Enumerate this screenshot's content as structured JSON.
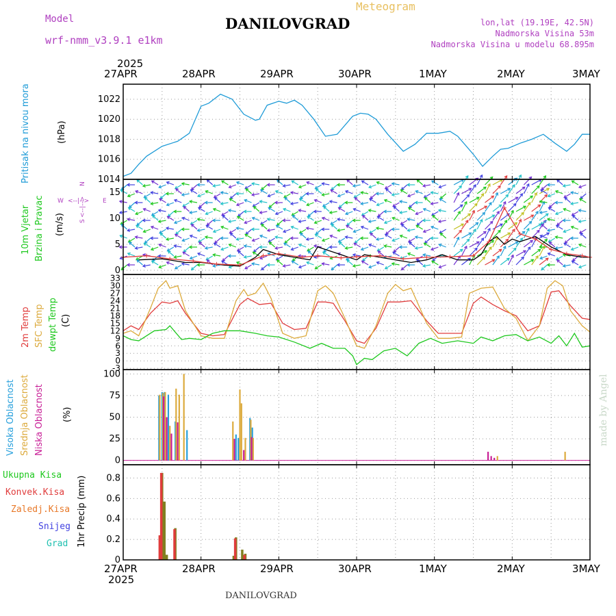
{
  "header": {
    "model_label": "Model",
    "model_name": "wrf-nmm_v3.9.1 e1km",
    "title": "DANILOVGRAD",
    "meteogram": "Meteogram",
    "lonlat": "lon,lat (19.19E, 42.5N)",
    "elevation": "Nadmorska Visina 53m",
    "model_elevation": "Nadmorska Visina u modelu 68.895m",
    "footer_title": "DANILOVGRAD",
    "credit": "made by Angel"
  },
  "time_axis": {
    "year": "2025",
    "labels": [
      "27APR",
      "28APR",
      "29APR",
      "30APR",
      "1MAY",
      "2MAY",
      "3MAY"
    ]
  },
  "panel_labels": {
    "pressure": [
      "Pritisak na nivou mora",
      "(hPa)"
    ],
    "wind": [
      "10m Vjetar",
      "Brzina i Pravac",
      "(m/s)"
    ],
    "compass": [
      "W",
      "<--|-->",
      "E",
      "N",
      "<--|-->",
      "S"
    ],
    "temp": [
      "2m Temp",
      "SFC Temp",
      "dewpt Temp",
      "(C)"
    ],
    "cloud": [
      "Visoka Oblacnost",
      "Srednja Oblacnost",
      "Niska Oblacnost",
      "(%)"
    ],
    "precip": [
      "Ukupna Kisa",
      "Konvek.Kisa",
      "Zaledj.Kisa",
      "Snijeg",
      "Grad",
      "1hr Precip (mm)"
    ]
  },
  "colors": {
    "pressure": "#1e9bd7",
    "temp2m": "#e03c3c",
    "sfc": "#dcaa3c",
    "dewpt": "#1ec81e",
    "high_cloud": "#28a0dc",
    "mid_cloud": "#dcaa3c",
    "low_cloud": "#c81e96",
    "total_rain": "#808020",
    "conv_rain": "#e03c3c",
    "wind_speed": "#000000",
    "gust": "#e03c3c",
    "purple": "#b040c0",
    "green_label": "#1ec81e",
    "red_label": "#e03c3c",
    "orange_label": "#e87828",
    "blue_label": "#4040e0",
    "teal_label": "#20c0b0"
  },
  "chart_data": [
    {
      "type": "line",
      "title": "Pritisak na nivou mora",
      "ylabel": "(hPa)",
      "x_unit": "days since 27APR 00UTC",
      "ylim": [
        1014,
        1023.5
      ],
      "yticks": [
        1014,
        1016,
        1018,
        1020,
        1022
      ],
      "series": [
        {
          "name": "Pritisak na nivou mora",
          "x": [
            0,
            0.1,
            0.2,
            0.3,
            0.5,
            0.7,
            0.85,
            1.0,
            1.1,
            1.25,
            1.4,
            1.55,
            1.7,
            1.75,
            1.85,
            2.0,
            2.1,
            2.2,
            2.3,
            2.45,
            2.6,
            2.75,
            2.95,
            3.05,
            3.15,
            3.25,
            3.4,
            3.6,
            3.75,
            3.9,
            4.05,
            4.2,
            4.3,
            4.5,
            4.62,
            4.75,
            4.85,
            4.95,
            5.1,
            5.25,
            5.4,
            5.55,
            5.7,
            5.8,
            5.9,
            6.0
          ],
          "values": [
            1014.3,
            1014.6,
            1015.5,
            1016.3,
            1017.3,
            1017.8,
            1018.6,
            1021.3,
            1021.6,
            1022.5,
            1022.0,
            1020.5,
            1019.9,
            1020.0,
            1021.4,
            1021.8,
            1021.6,
            1021.9,
            1021.4,
            1020.0,
            1018.3,
            1018.5,
            1020.3,
            1020.6,
            1020.5,
            1020.0,
            1018.5,
            1016.8,
            1017.5,
            1018.6,
            1018.6,
            1018.8,
            1018.3,
            1016.5,
            1015.3,
            1016.3,
            1017.0,
            1017.1,
            1017.6,
            1018.0,
            1018.5,
            1017.6,
            1016.8,
            1017.5,
            1018.5,
            1018.5
          ]
        }
      ]
    },
    {
      "type": "line",
      "title": "10m Vjetar Brzina i Pravac",
      "ylabel": "(m/s)",
      "x_unit": "days since 27APR 00UTC",
      "ylim": [
        -0.8,
        17.5
      ],
      "yticks": [
        0,
        5,
        10,
        15
      ],
      "series": [
        {
          "name": "speed",
          "x": [
            0.2,
            0.5,
            0.8,
            1.0,
            1.3,
            1.5,
            1.7,
            1.8,
            1.9,
            2.0,
            2.2,
            2.4,
            2.5,
            2.6,
            2.8,
            3.0,
            3.1,
            3.3,
            3.5,
            3.7,
            3.9,
            4.1,
            4.3,
            4.5,
            4.6,
            4.7,
            4.8,
            4.9,
            5.0,
            5.1,
            5.3,
            5.5,
            5.7,
            5.9,
            6.0
          ],
          "values": [
            2,
            2.2,
            1.5,
            1.5,
            1,
            0.8,
            2.5,
            4,
            3.5,
            3,
            2.5,
            2,
            4.5,
            4,
            3,
            2,
            3,
            2.5,
            2,
            1.5,
            2,
            3,
            2,
            2,
            3,
            5.5,
            6.5,
            5,
            6,
            5.5,
            6.5,
            4.5,
            3,
            2.5,
            2.5
          ]
        },
        {
          "name": "gust",
          "x": [
            0,
            0.3,
            0.6,
            0.9,
            1.2,
            1.5,
            1.8,
            2.0,
            2.3,
            2.5,
            2.8,
            3.0,
            3.3,
            3.6,
            3.9,
            4.2,
            4.5,
            4.7,
            4.9,
            5.1,
            5.3,
            5.5,
            5.7,
            5.9,
            6.0
          ],
          "values": [
            2.5,
            2.8,
            2.2,
            1.8,
            1.2,
            1.0,
            2.8,
            3.2,
            2.5,
            2.8,
            2.4,
            2.6,
            2.8,
            2.2,
            2.5,
            2.6,
            2.8,
            5.5,
            12,
            7,
            6,
            4,
            3.2,
            2.8,
            2.5
          ]
        }
      ]
    },
    {
      "type": "line",
      "title": "2m Temp / SFC Temp / dewpt Temp",
      "ylabel": "(C)",
      "x_unit": "days since 27APR 00UTC",
      "ylim": [
        -3.5,
        34.5
      ],
      "yticks": [
        -3,
        0,
        3,
        6,
        9,
        12,
        15,
        18,
        21,
        24,
        27,
        30,
        33
      ],
      "series": [
        {
          "name": "2m Temp",
          "x": [
            0,
            0.1,
            0.2,
            0.35,
            0.5,
            0.6,
            0.7,
            0.8,
            1.0,
            1.15,
            1.3,
            1.5,
            1.6,
            1.75,
            1.9,
            2.05,
            2.2,
            2.35,
            2.5,
            2.6,
            2.7,
            2.85,
            3.0,
            3.1,
            3.25,
            3.4,
            3.55,
            3.7,
            3.9,
            4.05,
            4.2,
            4.35,
            4.5,
            4.6,
            4.75,
            4.9,
            5.05,
            5.2,
            5.35,
            5.5,
            5.6,
            5.75,
            5.9,
            6.0
          ],
          "values": [
            12,
            14,
            12.5,
            19,
            23.5,
            23,
            24,
            19,
            11,
            10,
            10.5,
            22.5,
            25,
            22.5,
            23,
            15,
            12.5,
            13,
            23.5,
            23.5,
            23,
            16,
            8,
            7,
            13,
            23.5,
            23.5,
            24,
            16,
            11,
            11,
            11,
            23,
            25.5,
            22.5,
            20,
            18,
            12,
            14,
            27.5,
            28,
            22,
            17,
            16.5
          ]
        },
        {
          "name": "SFC Temp",
          "x": [
            0,
            0.1,
            0.2,
            0.35,
            0.45,
            0.55,
            0.6,
            0.7,
            0.8,
            1.0,
            1.15,
            1.3,
            1.45,
            1.55,
            1.6,
            1.7,
            1.8,
            1.9,
            2.05,
            2.2,
            2.35,
            2.5,
            2.6,
            2.7,
            2.85,
            3.0,
            3.1,
            3.25,
            3.4,
            3.5,
            3.6,
            3.7,
            3.9,
            4.05,
            4.2,
            4.35,
            4.45,
            4.6,
            4.75,
            4.9,
            5.05,
            5.2,
            5.35,
            5.45,
            5.55,
            5.65,
            5.75,
            5.9,
            6.0
          ],
          "values": [
            11,
            12,
            10,
            21,
            29,
            32,
            29,
            30,
            20,
            10,
            9,
            9,
            24,
            28.5,
            26,
            27,
            31,
            25,
            11,
            9,
            10,
            28,
            30,
            27,
            17,
            6,
            5,
            14,
            27,
            30.5,
            28,
            29,
            15,
            9,
            9,
            9.5,
            27,
            29,
            29.5,
            21,
            17,
            8,
            14,
            29,
            32,
            30,
            20,
            14,
            11.5
          ]
        },
        {
          "name": "dewpt Temp",
          "x": [
            0,
            0.1,
            0.2,
            0.4,
            0.55,
            0.6,
            0.75,
            0.85,
            1.0,
            1.15,
            1.3,
            1.5,
            1.7,
            1.85,
            2.0,
            2.2,
            2.4,
            2.55,
            2.7,
            2.85,
            2.95,
            3.0,
            3.1,
            3.2,
            3.35,
            3.5,
            3.65,
            3.8,
            3.95,
            4.1,
            4.3,
            4.5,
            4.6,
            4.75,
            4.9,
            5.05,
            5.2,
            5.35,
            5.5,
            5.6,
            5.7,
            5.8,
            5.9,
            6.0
          ],
          "values": [
            10,
            8.5,
            8,
            12,
            12.5,
            14,
            8.5,
            9,
            8.5,
            11,
            12,
            12,
            11,
            10,
            9.5,
            7.5,
            5,
            7,
            5,
            5,
            2,
            -1.5,
            1,
            0.5,
            4,
            5,
            2,
            7,
            9,
            7,
            8,
            7,
            9.5,
            8,
            10,
            10.5,
            8,
            9.5,
            7,
            10,
            6,
            11,
            5.5,
            6
          ]
        }
      ]
    },
    {
      "type": "bar",
      "title": "Visoka / Srednja / Niska Oblacnost",
      "ylabel": "(%)",
      "x_unit": "days since 27APR 00UTC",
      "ylim": [
        -5,
        105
      ],
      "yticks": [
        0,
        25,
        50,
        75,
        100
      ],
      "series": [
        {
          "name": "Visoka Oblacnost",
          "x": [
            0.46,
            0.5,
            0.53,
            0.58,
            0.67,
            0.82,
            1.45,
            1.48,
            1.63,
            1.66
          ],
          "values": [
            75,
            79,
            79,
            76,
            45,
            35,
            30,
            26,
            49,
            38
          ]
        },
        {
          "name": "Srednja Oblacnost",
          "x": [
            0.47,
            0.51,
            0.54,
            0.6,
            0.68,
            0.72,
            0.78,
            1.41,
            1.5,
            1.52,
            1.57,
            1.64,
            1.67,
            4.81,
            5.68
          ],
          "values": [
            76,
            78,
            79,
            40,
            83,
            76,
            100,
            45,
            82,
            66,
            26,
            47,
            26,
            5,
            10
          ]
        },
        {
          "name": "Niska Oblacnost",
          "x": [
            0.52,
            0.56,
            0.62,
            0.7,
            1.43,
            1.55,
            1.65,
            4.69,
            4.73,
            4.77
          ],
          "values": [
            74,
            50,
            31,
            44,
            25,
            12,
            27,
            10,
            5,
            3
          ]
        }
      ]
    },
    {
      "type": "bar",
      "title": "1hr Precip",
      "ylabel": "1hr Precip (mm)",
      "x_unit": "days since 27APR 00UTC",
      "ylim": [
        0,
        0.93
      ],
      "yticks": [
        0,
        0.2,
        0.4,
        0.6,
        0.8
      ],
      "series": [
        {
          "name": "Ukupna Kisa",
          "x": [
            0.48,
            0.5,
            0.53,
            0.56,
            0.67,
            1.42,
            1.45,
            1.53,
            1.57
          ],
          "values": [
            0.24,
            0.85,
            0.57,
            0.05,
            0.31,
            0.04,
            0.22,
            0.1,
            0.06
          ]
        },
        {
          "name": "Konvek.Kisa",
          "x": [
            0.48,
            0.5,
            0.67,
            1.45,
            1.57
          ],
          "values": [
            0.24,
            0.85,
            0.3,
            0.21,
            0.05
          ]
        }
      ]
    }
  ]
}
